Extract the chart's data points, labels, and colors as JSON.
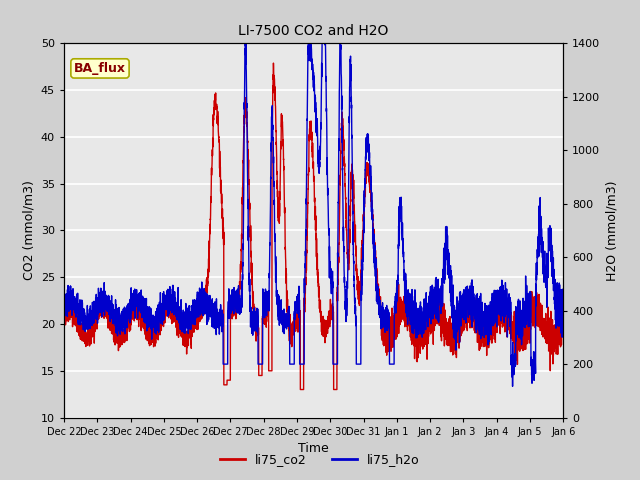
{
  "title": "LI-7500 CO2 and H2O",
  "xlabel": "Time",
  "ylabel_left": "CO2 (mmol/m3)",
  "ylabel_right": "H2O (mmol/m3)",
  "ylim_left": [
    10,
    50
  ],
  "ylim_right": [
    0,
    1400
  ],
  "yticks_left": [
    10,
    15,
    20,
    25,
    30,
    35,
    40,
    45,
    50
  ],
  "yticks_right": [
    0,
    200,
    400,
    600,
    800,
    1000,
    1200,
    1400
  ],
  "annotation_text": "BA_flux",
  "annotation_bg": "#ffffcc",
  "annotation_fg": "#880000",
  "color_co2": "#cc0000",
  "color_h2o": "#0000cc",
  "legend_co2": "li75_co2",
  "legend_h2o": "li75_h2o",
  "fig_bg": "#d0d0d0",
  "plot_bg": "#e8e8e8",
  "grid_color": "#ffffff",
  "tick_labels": [
    "Dec 22",
    "Dec 23",
    "Dec 24",
    "Dec 25",
    "Dec 26",
    "Dec 27",
    "Dec 28",
    "Dec 29",
    "Dec 30",
    "Dec 31",
    "Jan 1",
    "Jan 2",
    "Jan 3",
    "Jan 4",
    "Jan 5",
    "Jan 6"
  ],
  "seed": 42,
  "lw_co2": 1.0,
  "lw_h2o": 1.0
}
